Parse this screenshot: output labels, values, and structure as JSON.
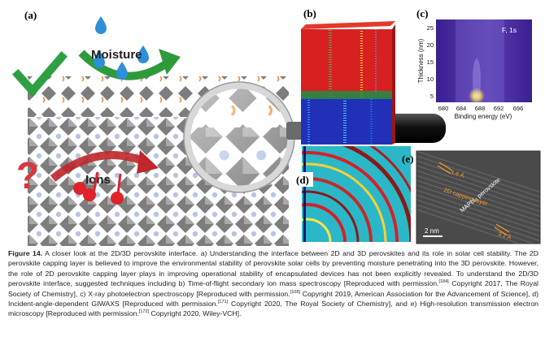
{
  "panels": {
    "a": {
      "label": "(a)",
      "moisture": "Moisture",
      "ions": "Ions"
    },
    "b": {
      "label": "(b)"
    },
    "c": {
      "label": "(c)",
      "annotation": "F, 1s",
      "ylabel": "Thickness (nm)",
      "xlabel": "Binding energy (eV)",
      "xticks": [
        "680",
        "684",
        "688",
        "692",
        "696"
      ],
      "yticks": [
        "25",
        "20",
        "15",
        "10",
        "5"
      ]
    },
    "d": {
      "label": "(d)"
    },
    "e": {
      "label": "(e)",
      "spacing1": "1.6 Å",
      "capping": "2D capping layer",
      "perovskite": "MAPbI₃ perovskite",
      "spacing2": "3.1 Å",
      "scalebar": "2 nm"
    }
  },
  "caption": {
    "fig_label": "Figure 14.",
    "seg1": " A closer look at the 2D/3D perovskite interface. a) Understanding the interface between 2D and 3D perovskites and its role in solar cell stability. The 2D perovskite capping layer is believed to improve the environmental stability of perovskite solar cells by preventing moisture penetrating into the 3D perovskite. However, the role of 2D perovskite capping layer plays in improving operational stability of encapsulated devices has not been explicitly revealed. To understand the 2D/3D perovskite interface, suggested techniques including b) Time-of-flight secondary ion mass spectroscopy [Reproduced with permission.",
    "ref1": "[184]",
    "seg2": " Copyright 2017, The Royal Society of Chemistry], c) X-ray photoelectron spectroscopy [Reproduced with permission.",
    "ref2": "[108]",
    "seg3": " Copyright 2019, American Association for the Advancement of Science], d) Incident-angle-dependent GIWAXS [Reproduced with permission.",
    "ref3": "[171]",
    "seg4": " Copyright 2020, The Royal Society of Chemistry], and e) High-resolution transmission electron microscopy [Reproduced with permission.",
    "ref4": "[172]",
    "seg5": " Copyright 2020, Wiley-VCH]."
  },
  "colors": {
    "check": "#2ea043",
    "moisture_drop": "#2f8fd8",
    "question": "#d9363e",
    "ion": "#e0222a",
    "octahedra": "#8a8a8a",
    "organic_chain": "#f08a30"
  }
}
